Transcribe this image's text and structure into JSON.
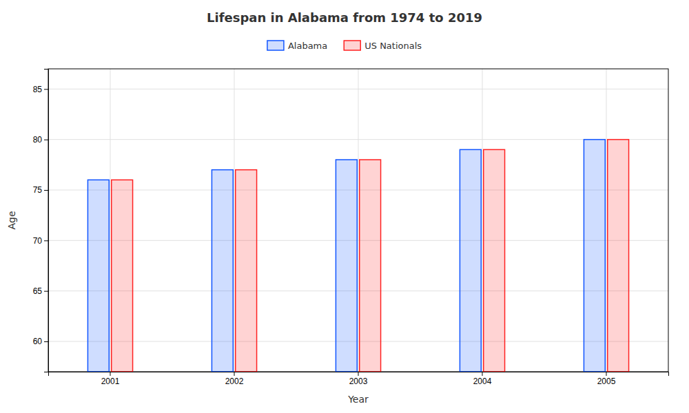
{
  "chart_data": {
    "type": "bar",
    "title": "Lifespan in Alabama from 1974 to 2019",
    "x_label": "Year",
    "y_label": "Age",
    "categories": [
      "2001",
      "2002",
      "2003",
      "2004",
      "2005"
    ],
    "series": [
      {
        "name": "Alabama",
        "color": "#1155ff",
        "values": [
          76,
          77,
          78,
          79,
          80
        ]
      },
      {
        "name": "US Nationals",
        "color": "#ff2222",
        "values": [
          76,
          77,
          78,
          79,
          80
        ]
      }
    ],
    "ylim": [
      57,
      87
    ],
    "yticks": [
      60,
      65,
      70,
      75,
      80,
      85
    ],
    "grid": true,
    "legend": "top"
  }
}
